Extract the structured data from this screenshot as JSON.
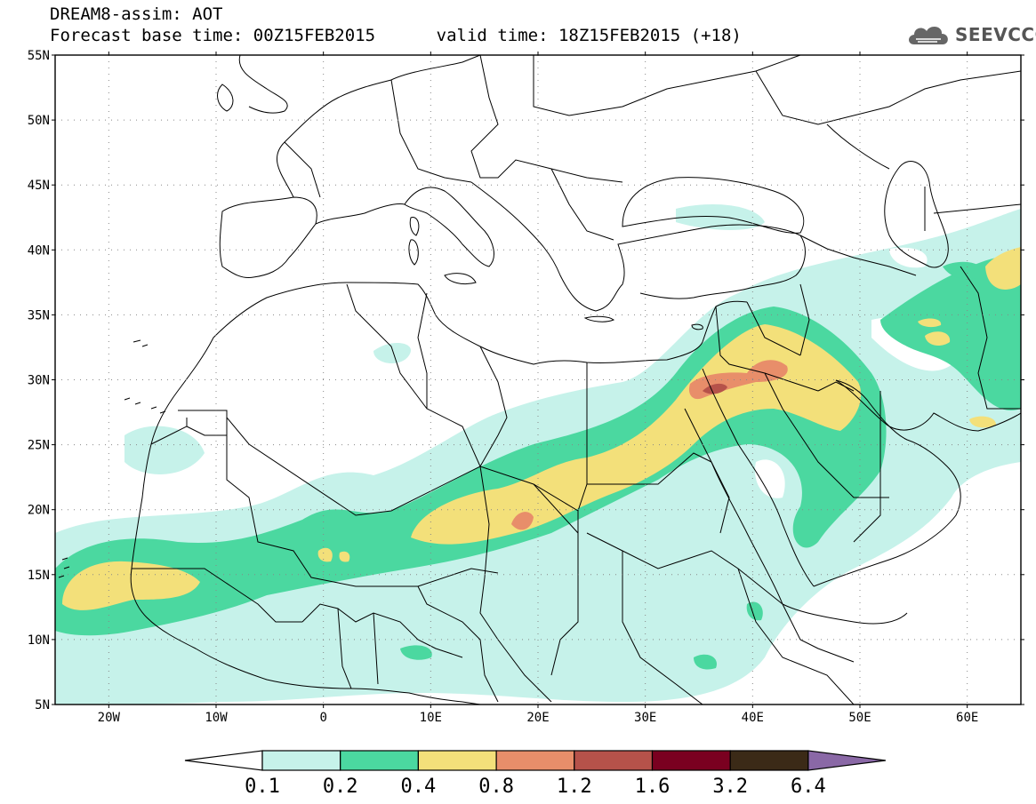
{
  "header": {
    "title_line1": "DREAM8-assim: AOT",
    "title_line2": "Forecast base time: 00Z15FEB2015      valid time: 18Z15FEB2015 (+18)"
  },
  "logo": {
    "text": "SEEVCCC",
    "icon": "cloud-icon"
  },
  "map": {
    "lon_range": [
      -25,
      65
    ],
    "lat_range": [
      5,
      55
    ],
    "lat_labels": [
      "55N",
      "50N",
      "45N",
      "40N",
      "35N",
      "30N",
      "25N",
      "20N",
      "15N",
      "10N",
      "5N"
    ],
    "lon_labels": [
      "20W",
      "10W",
      "0",
      "10E",
      "20E",
      "30E",
      "40E",
      "50E",
      "60E"
    ],
    "gridlines": "dotted"
  },
  "colorbar": {
    "levels": [
      "0.1",
      "0.2",
      "0.4",
      "0.8",
      "1.2",
      "1.6",
      "3.2",
      "6.4"
    ],
    "colors": [
      "#ffffff",
      "#c6f2ea",
      "#4bd8a0",
      "#f3e07a",
      "#e88e6a",
      "#b6524a",
      "#7a0020",
      "#3b2a17",
      "#8a68a6"
    ]
  }
}
